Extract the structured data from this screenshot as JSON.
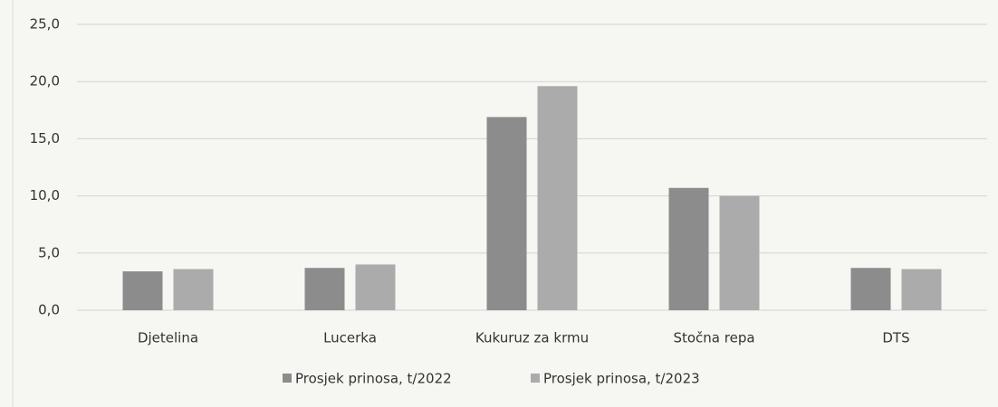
{
  "chart_data": {
    "type": "bar",
    "categories": [
      "Djetelina",
      "Lucerka",
      "Kukuruz za krmu",
      "Stočna repa",
      "DTS"
    ],
    "series": [
      {
        "name": "Prosjek prinosa, t/2022",
        "color": "#8c8c8c",
        "values": [
          3.4,
          3.7,
          16.9,
          10.7,
          3.7
        ]
      },
      {
        "name": "Prosjek prinosa, t/2023",
        "color": "#ababab",
        "values": [
          3.6,
          4.0,
          19.6,
          10.0,
          3.6
        ]
      }
    ],
    "ylim": [
      0,
      25
    ],
    "yticks": [
      {
        "value": 0,
        "label": "0,0"
      },
      {
        "value": 5,
        "label": "5,0"
      },
      {
        "value": 10,
        "label": "10,0"
      },
      {
        "value": 15,
        "label": "15,0"
      },
      {
        "value": 20,
        "label": "20,0"
      },
      {
        "value": 25,
        "label": "25,0"
      }
    ],
    "grid": true,
    "legend": "bottom"
  }
}
